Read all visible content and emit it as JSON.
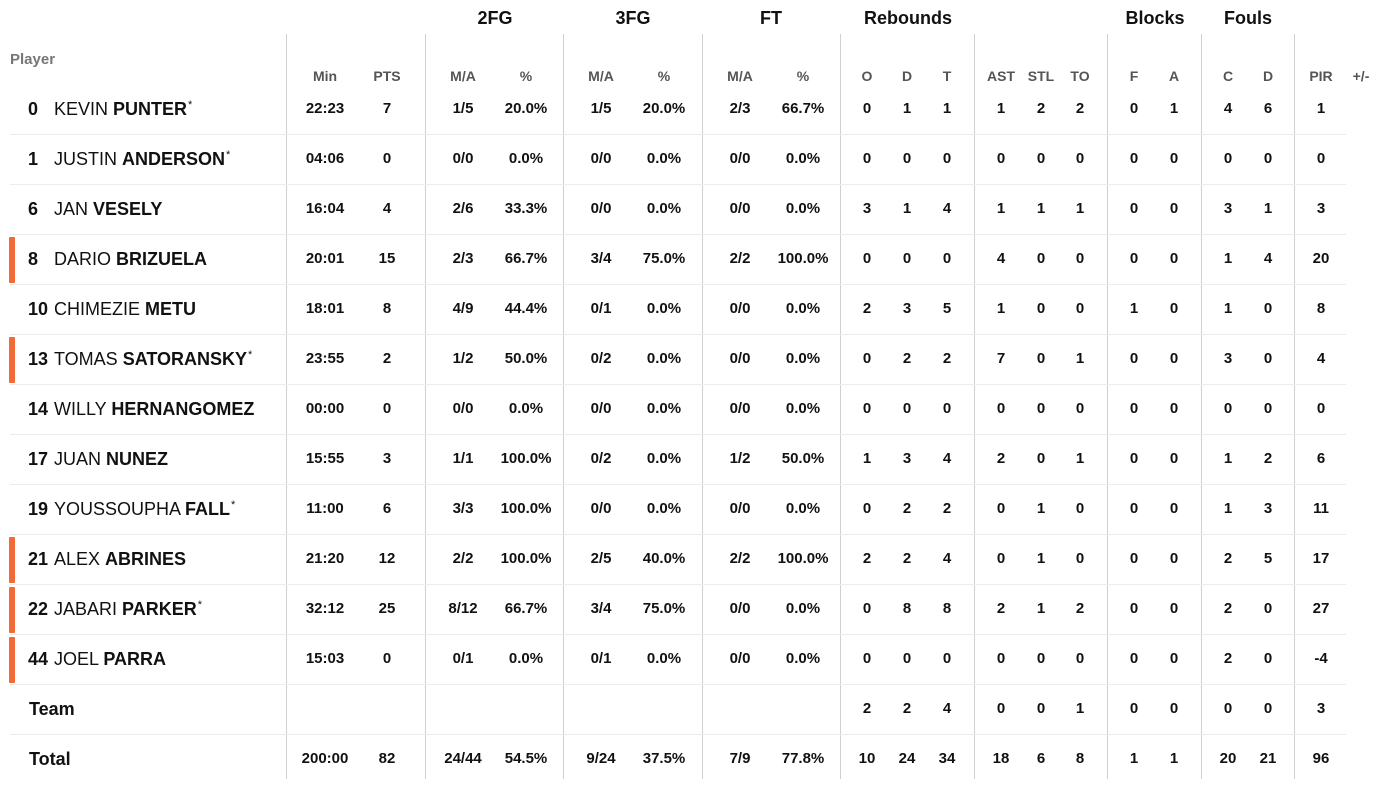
{
  "group_headers": {
    "fg2": "2FG",
    "fg3": "3FG",
    "ft": "FT",
    "rebounds": "Rebounds",
    "blocks": "Blocks",
    "fouls": "Fouls"
  },
  "player_label": "Player",
  "columns": [
    "Min",
    "PTS",
    "M/A",
    "%",
    "M/A",
    "%",
    "M/A",
    "%",
    "O",
    "D",
    "T",
    "AST",
    "STL",
    "TO",
    "F",
    "A",
    "C",
    "D",
    "PIR",
    "+/-"
  ],
  "players": [
    {
      "num": "0",
      "first": "KEVIN",
      "last": "PUNTER",
      "star": "*",
      "highlight": false,
      "stats": [
        "22:23",
        "7",
        "1/5",
        "20.0%",
        "1/5",
        "20.0%",
        "2/3",
        "66.7%",
        "0",
        "1",
        "1",
        "1",
        "2",
        "2",
        "0",
        "1",
        "4",
        "6",
        "1",
        ""
      ]
    },
    {
      "num": "1",
      "first": "JUSTIN",
      "last": "ANDERSON",
      "star": "*",
      "highlight": false,
      "stats": [
        "04:06",
        "0",
        "0/0",
        "0.0%",
        "0/0",
        "0.0%",
        "0/0",
        "0.0%",
        "0",
        "0",
        "0",
        "0",
        "0",
        "0",
        "0",
        "0",
        "0",
        "0",
        "0",
        ""
      ]
    },
    {
      "num": "6",
      "first": "JAN",
      "last": "VESELY",
      "star": "",
      "highlight": false,
      "stats": [
        "16:04",
        "4",
        "2/6",
        "33.3%",
        "0/0",
        "0.0%",
        "0/0",
        "0.0%",
        "3",
        "1",
        "4",
        "1",
        "1",
        "1",
        "0",
        "0",
        "3",
        "1",
        "3",
        ""
      ]
    },
    {
      "num": "8",
      "first": "DARIO",
      "last": "BRIZUELA",
      "star": "",
      "highlight": true,
      "stats": [
        "20:01",
        "15",
        "2/3",
        "66.7%",
        "3/4",
        "75.0%",
        "2/2",
        "100.0%",
        "0",
        "0",
        "0",
        "4",
        "0",
        "0",
        "0",
        "0",
        "1",
        "4",
        "20",
        ""
      ]
    },
    {
      "num": "10",
      "first": "CHIMEZIE",
      "last": "METU",
      "star": "",
      "highlight": false,
      "stats": [
        "18:01",
        "8",
        "4/9",
        "44.4%",
        "0/1",
        "0.0%",
        "0/0",
        "0.0%",
        "2",
        "3",
        "5",
        "1",
        "0",
        "0",
        "1",
        "0",
        "1",
        "0",
        "8",
        ""
      ]
    },
    {
      "num": "13",
      "first": "TOMAS",
      "last": "SATORANSKY",
      "star": "*",
      "highlight": true,
      "stats": [
        "23:55",
        "2",
        "1/2",
        "50.0%",
        "0/2",
        "0.0%",
        "0/0",
        "0.0%",
        "0",
        "2",
        "2",
        "7",
        "0",
        "1",
        "0",
        "0",
        "3",
        "0",
        "4",
        ""
      ]
    },
    {
      "num": "14",
      "first": "WILLY",
      "last": "HERNANGOMEZ",
      "star": "",
      "highlight": false,
      "stats": [
        "00:00",
        "0",
        "0/0",
        "0.0%",
        "0/0",
        "0.0%",
        "0/0",
        "0.0%",
        "0",
        "0",
        "0",
        "0",
        "0",
        "0",
        "0",
        "0",
        "0",
        "0",
        "0",
        ""
      ]
    },
    {
      "num": "17",
      "first": "JUAN",
      "last": "NUNEZ",
      "star": "",
      "highlight": false,
      "stats": [
        "15:55",
        "3",
        "1/1",
        "100.0%",
        "0/2",
        "0.0%",
        "1/2",
        "50.0%",
        "1",
        "3",
        "4",
        "2",
        "0",
        "1",
        "0",
        "0",
        "1",
        "2",
        "6",
        ""
      ]
    },
    {
      "num": "19",
      "first": "YOUSSOUPHA",
      "last": "FALL",
      "star": "*",
      "highlight": false,
      "stats": [
        "11:00",
        "6",
        "3/3",
        "100.0%",
        "0/0",
        "0.0%",
        "0/0",
        "0.0%",
        "0",
        "2",
        "2",
        "0",
        "1",
        "0",
        "0",
        "0",
        "1",
        "3",
        "11",
        ""
      ]
    },
    {
      "num": "21",
      "first": "ALEX",
      "last": "ABRINES",
      "star": "",
      "highlight": true,
      "stats": [
        "21:20",
        "12",
        "2/2",
        "100.0%",
        "2/5",
        "40.0%",
        "2/2",
        "100.0%",
        "2",
        "2",
        "4",
        "0",
        "1",
        "0",
        "0",
        "0",
        "2",
        "5",
        "17",
        ""
      ]
    },
    {
      "num": "22",
      "first": "JABARI",
      "last": "PARKER",
      "star": "*",
      "highlight": true,
      "stats": [
        "32:12",
        "25",
        "8/12",
        "66.7%",
        "3/4",
        "75.0%",
        "0/0",
        "0.0%",
        "0",
        "8",
        "8",
        "2",
        "1",
        "2",
        "0",
        "0",
        "2",
        "0",
        "27",
        ""
      ]
    },
    {
      "num": "44",
      "first": "JOEL",
      "last": "PARRA",
      "star": "",
      "highlight": true,
      "stats": [
        "15:03",
        "0",
        "0/1",
        "0.0%",
        "0/1",
        "0.0%",
        "0/0",
        "0.0%",
        "0",
        "0",
        "0",
        "0",
        "0",
        "0",
        "0",
        "0",
        "2",
        "0",
        "-4",
        ""
      ]
    }
  ],
  "team": {
    "label": "Team",
    "stats": [
      "",
      "",
      "",
      "",
      "",
      "",
      "",
      "",
      "2",
      "2",
      "4",
      "0",
      "0",
      "1",
      "0",
      "0",
      "0",
      "0",
      "3",
      ""
    ]
  },
  "total": {
    "label": "Total",
    "stats": [
      "200:00",
      "82",
      "24/44",
      "54.5%",
      "9/24",
      "37.5%",
      "7/9",
      "77.8%",
      "10",
      "24",
      "34",
      "18",
      "6",
      "8",
      "1",
      "1",
      "20",
      "21",
      "96",
      ""
    ]
  }
}
